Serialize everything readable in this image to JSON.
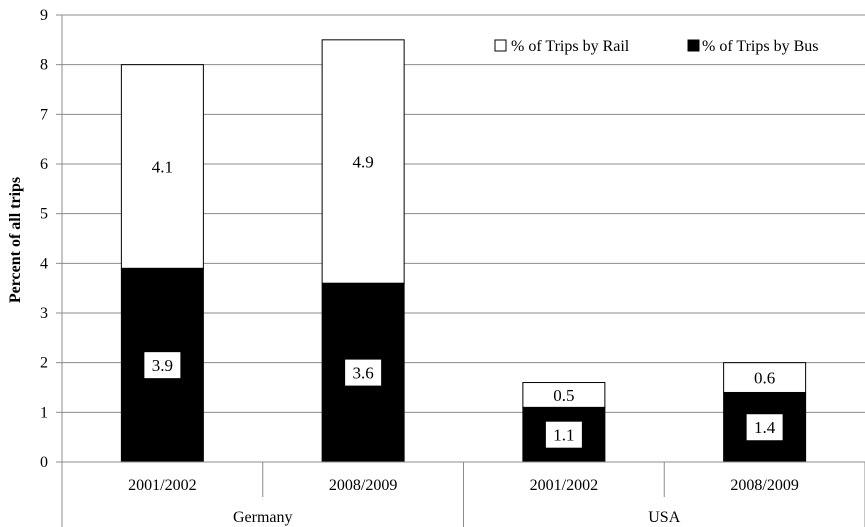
{
  "chart_data": {
    "type": "bar",
    "stacked": true,
    "ylabel": "Percent of all trips",
    "ylim": [
      0,
      9
    ],
    "yticks": [
      0,
      1,
      2,
      3,
      4,
      5,
      6,
      7,
      8,
      9
    ],
    "grid": true,
    "legend_position": "top-right",
    "groups": [
      {
        "name": "Germany",
        "categories": [
          "2001/2002",
          "2008/2009"
        ]
      },
      {
        "name": "USA",
        "categories": [
          "2001/2002",
          "2008/2009"
        ]
      }
    ],
    "categories": [
      "2001/2002",
      "2008/2009",
      "2001/2002",
      "2008/2009"
    ],
    "series": [
      {
        "name": "% of Trips by Bus",
        "color": "#000000",
        "values": [
          3.9,
          3.6,
          1.1,
          1.4
        ],
        "labels": [
          "3.9",
          "3.6",
          "1.1",
          "1.4"
        ]
      },
      {
        "name": "% of Trips by Rail",
        "color": "#ffffff",
        "values": [
          4.1,
          4.9,
          0.5,
          0.6
        ],
        "labels": [
          "4.1",
          "4.9",
          "0.5",
          "0.6"
        ]
      }
    ],
    "legend_order": [
      1,
      0
    ]
  }
}
